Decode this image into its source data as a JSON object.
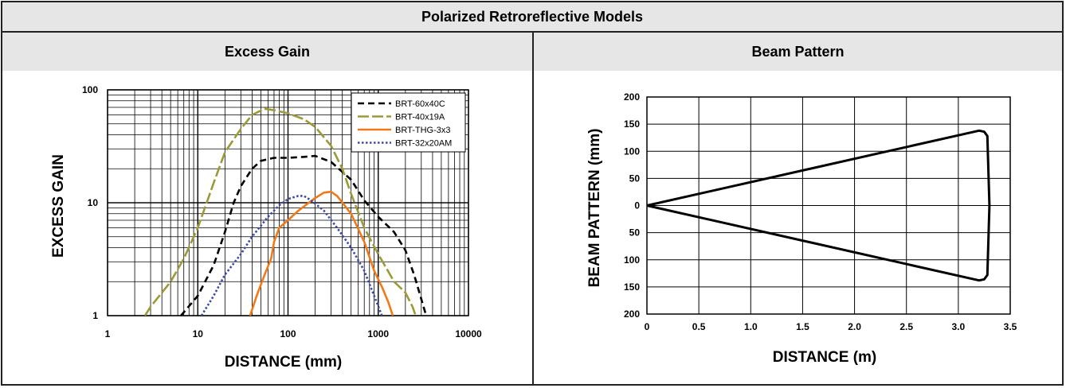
{
  "title": "Polarized Retroreflective Models",
  "chart_data": [
    {
      "type": "line",
      "title": "Excess Gain",
      "xlabel": "DISTANCE (mm)",
      "ylabel": "EXCESS GAIN",
      "xscale": "log",
      "yscale": "log",
      "xlim": [
        1,
        10000
      ],
      "ylim": [
        1,
        100
      ],
      "xticks": [
        "1",
        "10",
        "100",
        "1000",
        "10000"
      ],
      "yticks": [
        "1",
        "10",
        "100"
      ],
      "grid": true,
      "legend_position": "top-right",
      "series": [
        {
          "name": "BRT-60x40C",
          "color": "#000000",
          "dash": "8,5",
          "points": [
            [
              6.5,
              1
            ],
            [
              10,
              1.5
            ],
            [
              15,
              2.8
            ],
            [
              20,
              5.5
            ],
            [
              25,
              10
            ],
            [
              30,
              14
            ],
            [
              40,
              20
            ],
            [
              50,
              23.5
            ],
            [
              70,
              25
            ],
            [
              100,
              25
            ],
            [
              150,
              25.5
            ],
            [
              200,
              26
            ],
            [
              300,
              23
            ],
            [
              500,
              16
            ],
            [
              700,
              10.5
            ],
            [
              1000,
              7.5
            ],
            [
              1500,
              5.5
            ],
            [
              2000,
              3.8
            ],
            [
              2500,
              2.3
            ],
            [
              3000,
              1.4
            ],
            [
              3400,
              1
            ]
          ]
        },
        {
          "name": "BRT-40x19A",
          "color": "#9c9a38",
          "dash": "14,4",
          "points": [
            [
              2.6,
              1
            ],
            [
              3,
              1.2
            ],
            [
              5,
              2
            ],
            [
              7,
              3.2
            ],
            [
              10,
              6
            ],
            [
              15,
              15
            ],
            [
              20,
              28
            ],
            [
              30,
              45
            ],
            [
              40,
              60
            ],
            [
              55,
              68
            ],
            [
              70,
              66
            ],
            [
              100,
              62
            ],
            [
              150,
              55
            ],
            [
              200,
              47
            ],
            [
              300,
              32
            ],
            [
              400,
              20
            ],
            [
              500,
              12
            ],
            [
              700,
              6
            ],
            [
              1000,
              3.5
            ],
            [
              1500,
              2
            ],
            [
              2000,
              1.6
            ],
            [
              2400,
              1.2
            ],
            [
              2600,
              1
            ]
          ]
        },
        {
          "name": "BRT-THG-3x3",
          "color": "#f07a1a",
          "dash": "",
          "points": [
            [
              38,
              1
            ],
            [
              45,
              1.5
            ],
            [
              55,
              2.3
            ],
            [
              65,
              3.2
            ],
            [
              70,
              4.5
            ],
            [
              80,
              6
            ],
            [
              100,
              7
            ],
            [
              130,
              8.5
            ],
            [
              170,
              10
            ],
            [
              200,
              11
            ],
            [
              250,
              12.3
            ],
            [
              300,
              12.5
            ],
            [
              350,
              11.5
            ],
            [
              500,
              8
            ],
            [
              700,
              4.5
            ],
            [
              900,
              2.5
            ],
            [
              1100,
              1.8
            ],
            [
              1300,
              1.3
            ],
            [
              1450,
              1
            ]
          ]
        },
        {
          "name": "BRT-32x20AM",
          "color": "#3c4aa8",
          "dash": "2.5,2.5",
          "points": [
            [
              11,
              1
            ],
            [
              15,
              1.5
            ],
            [
              20,
              2.3
            ],
            [
              30,
              3.5
            ],
            [
              40,
              5
            ],
            [
              60,
              7.5
            ],
            [
              80,
              9.5
            ],
            [
              100,
              10.8
            ],
            [
              130,
              11.5
            ],
            [
              150,
              11.5
            ],
            [
              180,
              10.5
            ],
            [
              250,
              8.5
            ],
            [
              350,
              6
            ],
            [
              500,
              4
            ],
            [
              700,
              2.5
            ],
            [
              900,
              1.5
            ],
            [
              1100,
              1
            ]
          ]
        }
      ]
    },
    {
      "type": "line",
      "title": "Beam Pattern",
      "xlabel": "DISTANCE (m)",
      "ylabel": "BEAM PATTERN (mm)",
      "xlim": [
        0,
        3.5
      ],
      "ylim": [
        -200,
        200
      ],
      "xticks": [
        "0",
        "0.5",
        "1.0",
        "1.5",
        "2.0",
        "2.5",
        "3.0",
        "3.5"
      ],
      "yticks": [
        "200",
        "150",
        "100",
        "50",
        "0",
        "50",
        "100",
        "150",
        "200"
      ],
      "grid": true,
      "series": [
        {
          "color": "#000000",
          "points": [
            [
              0,
              0
            ],
            [
              3.2,
              138
            ],
            [
              3.25,
              136
            ],
            [
              3.28,
              128
            ],
            [
              3.3,
              0
            ],
            [
              3.28,
              -128
            ],
            [
              3.25,
              -136
            ],
            [
              3.2,
              -138
            ],
            [
              0,
              0
            ]
          ]
        }
      ]
    }
  ]
}
